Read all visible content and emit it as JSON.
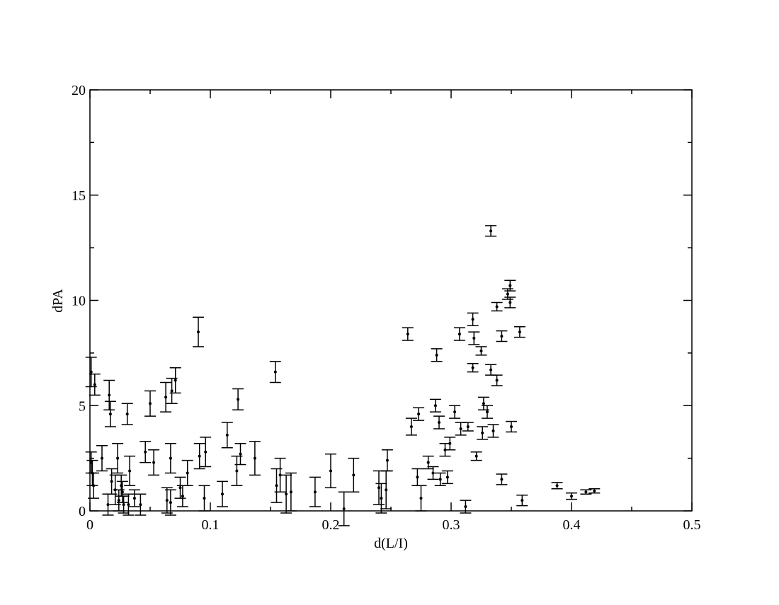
{
  "chart_data": {
    "type": "errorbar-scatter",
    "x_label": "d(L/I)",
    "y_label": "dPA",
    "xlim": [
      0,
      0.5
    ],
    "xticks": [
      0,
      0.1,
      0.2,
      0.3,
      0.4,
      0.5
    ],
    "xminorticks": [
      0.05,
      0.15,
      0.25,
      0.35,
      0.45
    ],
    "ylim": [
      0,
      20
    ],
    "yticks": [
      0,
      5,
      10,
      15,
      20
    ],
    "yminorticks": [
      2.5,
      7.5,
      12.5,
      17.5
    ],
    "series": [
      {
        "color": "#000000",
        "x": [
          0.001,
          0.004,
          0.001,
          0.002,
          0.003,
          0.01,
          0.015,
          0.016,
          0.017,
          0.018,
          0.021,
          0.023,
          0.024,
          0.026,
          0.027,
          0.028,
          0.031,
          0.032,
          0.033,
          0.037,
          0.042,
          0.046,
          0.05,
          0.053,
          0.063,
          0.064,
          0.067,
          0.067,
          0.068,
          0.071,
          0.075,
          0.077,
          0.081,
          0.09,
          0.091,
          0.095,
          0.096,
          0.11,
          0.114,
          0.122,
          0.123,
          0.125,
          0.137,
          0.154,
          0.155,
          0.158,
          0.163,
          0.167,
          0.187,
          0.2,
          0.211,
          0.219,
          0.24,
          0.242,
          0.246,
          0.247,
          0.264,
          0.267,
          0.272,
          0.273,
          0.275,
          0.281,
          0.285,
          0.287,
          0.288,
          0.29,
          0.291,
          0.295,
          0.297,
          0.299,
          0.303,
          0.307,
          0.308,
          0.312,
          0.314,
          0.318,
          0.318,
          0.319,
          0.321,
          0.325,
          0.326,
          0.327,
          0.33,
          0.333,
          0.333,
          0.335,
          0.338,
          0.338,
          0.342,
          0.342,
          0.347,
          0.349,
          0.349,
          0.35,
          0.357,
          0.359,
          0.388,
          0.4,
          0.412,
          0.419
        ],
        "values": [
          6.6,
          6.0,
          2.3,
          1.8,
          1.2,
          2.5,
          0.3,
          5.5,
          4.6,
          1.4,
          1.0,
          2.5,
          0.5,
          1.2,
          0.9,
          0.3,
          4.6,
          0.3,
          1.9,
          0.6,
          0.3,
          2.8,
          5.1,
          2.3,
          5.4,
          0.5,
          0.4,
          2.5,
          5.7,
          6.2,
          1.1,
          0.7,
          1.8,
          8.5,
          2.6,
          0.6,
          2.8,
          0.8,
          3.6,
          1.9,
          5.3,
          2.7,
          2.5,
          6.6,
          1.2,
          1.7,
          0.8,
          0.9,
          0.9,
          1.9,
          0.1,
          1.7,
          1.1,
          0.6,
          1.0,
          2.4,
          8.4,
          4.0,
          1.6,
          4.6,
          0.6,
          2.3,
          1.8,
          5.0,
          7.4,
          4.2,
          1.5,
          2.9,
          1.6,
          3.2,
          4.7,
          8.4,
          3.9,
          0.2,
          4.0,
          9.1,
          6.8,
          8.2,
          2.6,
          7.6,
          3.7,
          5.1,
          4.7,
          13.3,
          6.7,
          3.8,
          6.2,
          9.7,
          8.3,
          1.5,
          10.3,
          10.7,
          9.9,
          4.0,
          8.5,
          0.5,
          1.2,
          0.7,
          0.9,
          0.95
        ],
        "errors": [
          0.7,
          0.5,
          0.5,
          0.6,
          0.6,
          0.6,
          0.5,
          0.7,
          0.6,
          0.6,
          0.7,
          0.7,
          0.5,
          0.5,
          0.5,
          0.4,
          0.5,
          0.5,
          0.7,
          0.4,
          0.5,
          0.5,
          0.6,
          0.6,
          0.7,
          0.6,
          0.6,
          0.7,
          0.6,
          0.6,
          0.5,
          0.5,
          0.6,
          0.7,
          0.6,
          0.6,
          0.7,
          0.6,
          0.6,
          0.7,
          0.5,
          0.5,
          0.8,
          0.5,
          0.8,
          0.8,
          0.9,
          0.9,
          0.7,
          0.8,
          0.8,
          0.8,
          0.8,
          0.7,
          0.9,
          0.5,
          0.3,
          0.4,
          0.4,
          0.3,
          0.6,
          0.3,
          0.3,
          0.3,
          0.3,
          0.3,
          0.3,
          0.3,
          0.3,
          0.3,
          0.3,
          0.3,
          0.3,
          0.3,
          0.2,
          0.3,
          0.2,
          0.3,
          0.2,
          0.2,
          0.3,
          0.3,
          0.3,
          0.25,
          0.25,
          0.3,
          0.25,
          0.2,
          0.25,
          0.25,
          0.25,
          0.25,
          0.25,
          0.25,
          0.25,
          0.25,
          0.15,
          0.15,
          0.1,
          0.1
        ]
      }
    ]
  }
}
